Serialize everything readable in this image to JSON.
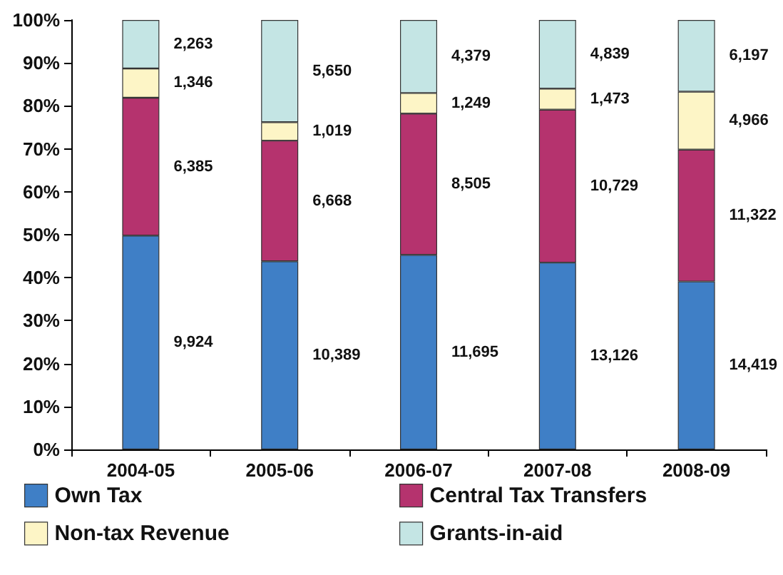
{
  "chart_data": {
    "type": "bar",
    "stacked": true,
    "categories": [
      "2004-05",
      "2005-06",
      "2006-07",
      "2007-08",
      "2008-09"
    ],
    "series": [
      {
        "name": "Own Tax",
        "color": "#3f7fc6",
        "values": [
          49.8,
          43.8,
          45.3,
          43.5,
          39.1
        ]
      },
      {
        "name": "Central Tax Transfers",
        "color": "#b5336e",
        "values": [
          32.1,
          28.1,
          32.9,
          35.6,
          30.7
        ]
      },
      {
        "name": "Non-tax Revenue",
        "color": "#fdf5c6",
        "values": [
          6.8,
          4.3,
          4.8,
          4.9,
          13.5
        ]
      },
      {
        "name": "Grants-in-aid",
        "color": "#c4e5e4",
        "values": [
          11.3,
          23.8,
          17.0,
          16.0,
          16.7
        ]
      }
    ],
    "annotations": [
      "9,924",
      "6,385",
      "1,346",
      "2,263",
      "10,389",
      "6,668",
      "1,019",
      "5,650",
      "11,695",
      "8,505",
      "1,249",
      "4,379",
      "13,126",
      "10,729",
      "1,473",
      "4,839",
      "14,419",
      "11,322",
      "4,966",
      "6,197"
    ],
    "ylim": [
      0,
      100
    ],
    "yticks": [
      {
        "value": 0,
        "label": "0%"
      },
      {
        "value": 10,
        "label": "10%"
      },
      {
        "value": 20,
        "label": "20%"
      },
      {
        "value": 30,
        "label": "30%"
      },
      {
        "value": 40,
        "label": "40%"
      },
      {
        "value": 50,
        "label": "50%"
      },
      {
        "value": 60,
        "label": "60%"
      },
      {
        "value": 70,
        "label": "70%"
      },
      {
        "value": 80,
        "label": "80%"
      },
      {
        "value": 90,
        "label": "90%"
      },
      {
        "value": 100,
        "label": "100%"
      }
    ],
    "grid": false,
    "legend": "bottom"
  }
}
